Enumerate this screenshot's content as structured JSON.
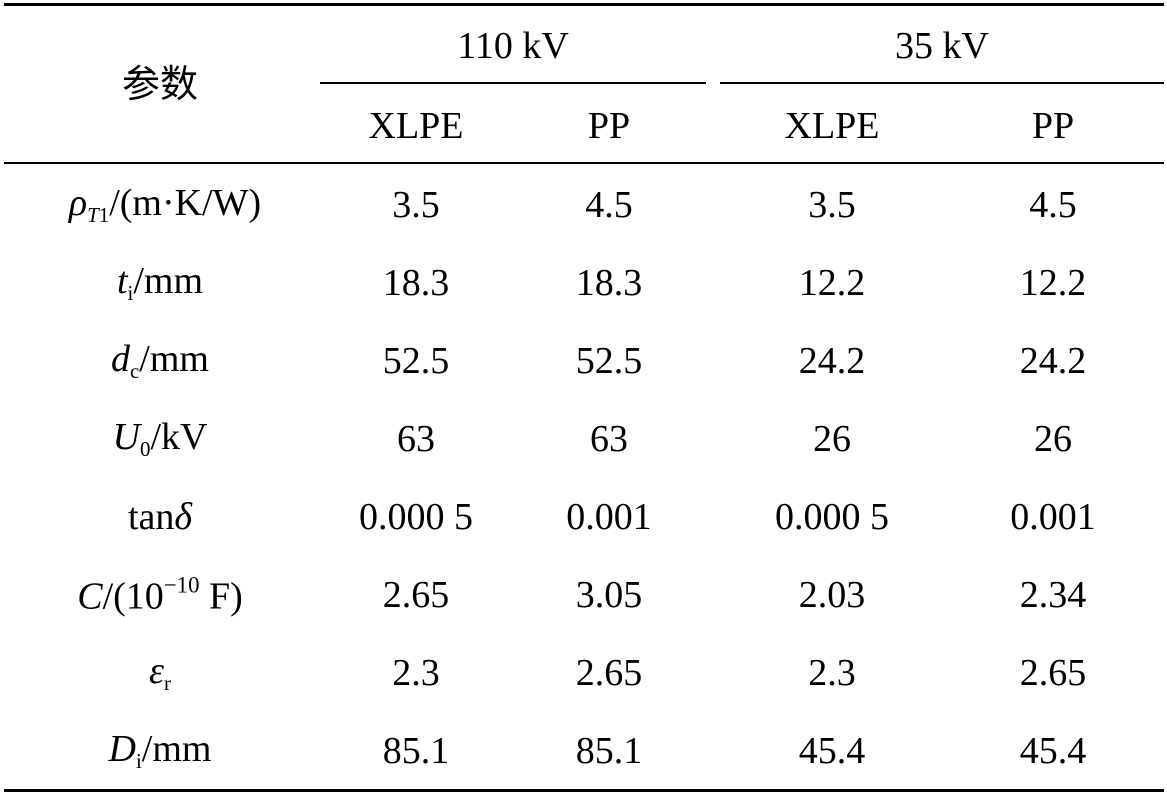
{
  "table": {
    "param_header": "参数",
    "groups": [
      {
        "label": "110 kV",
        "columns": [
          "XLPE",
          "PP"
        ]
      },
      {
        "label": "35 kV",
        "columns": [
          "XLPE",
          "PP"
        ]
      }
    ],
    "rows": [
      {
        "param": {
          "sym": "ρ",
          "sub_sym": "T",
          "sub_num": "1",
          "unit": "/(m·K/W)"
        },
        "values": [
          "3.5",
          "4.5",
          "3.5",
          "4.5"
        ]
      },
      {
        "param": {
          "sym": "t",
          "sub": "i",
          "unit": "/mm"
        },
        "values": [
          "18.3",
          "18.3",
          "12.2",
          "12.2"
        ]
      },
      {
        "param": {
          "sym": "d",
          "sub": "c",
          "unit": "/mm"
        },
        "values": [
          "52.5",
          "52.5",
          "24.2",
          "24.2"
        ]
      },
      {
        "param": {
          "sym": "U",
          "sub": "0",
          "unit": "/kV"
        },
        "values": [
          "63",
          "63",
          "26",
          "26"
        ]
      },
      {
        "param": {
          "pre": "tan",
          "sym": "δ"
        },
        "values": [
          "0.000 5",
          "0.001",
          "0.000 5",
          "0.001"
        ]
      },
      {
        "param": {
          "sym": "C",
          "unit_pre": "/(10",
          "sup": "−10",
          "unit_post": " F)"
        },
        "values": [
          "2.65",
          "3.05",
          "2.03",
          "2.34"
        ]
      },
      {
        "param": {
          "sym": "ε",
          "sub": "r"
        },
        "values": [
          "2.3",
          "2.65",
          "2.3",
          "2.65"
        ]
      },
      {
        "param": {
          "sym": "D",
          "sub": "i",
          "unit": "/mm"
        },
        "values": [
          "85.1",
          "85.1",
          "45.4",
          "45.4"
        ]
      }
    ]
  }
}
